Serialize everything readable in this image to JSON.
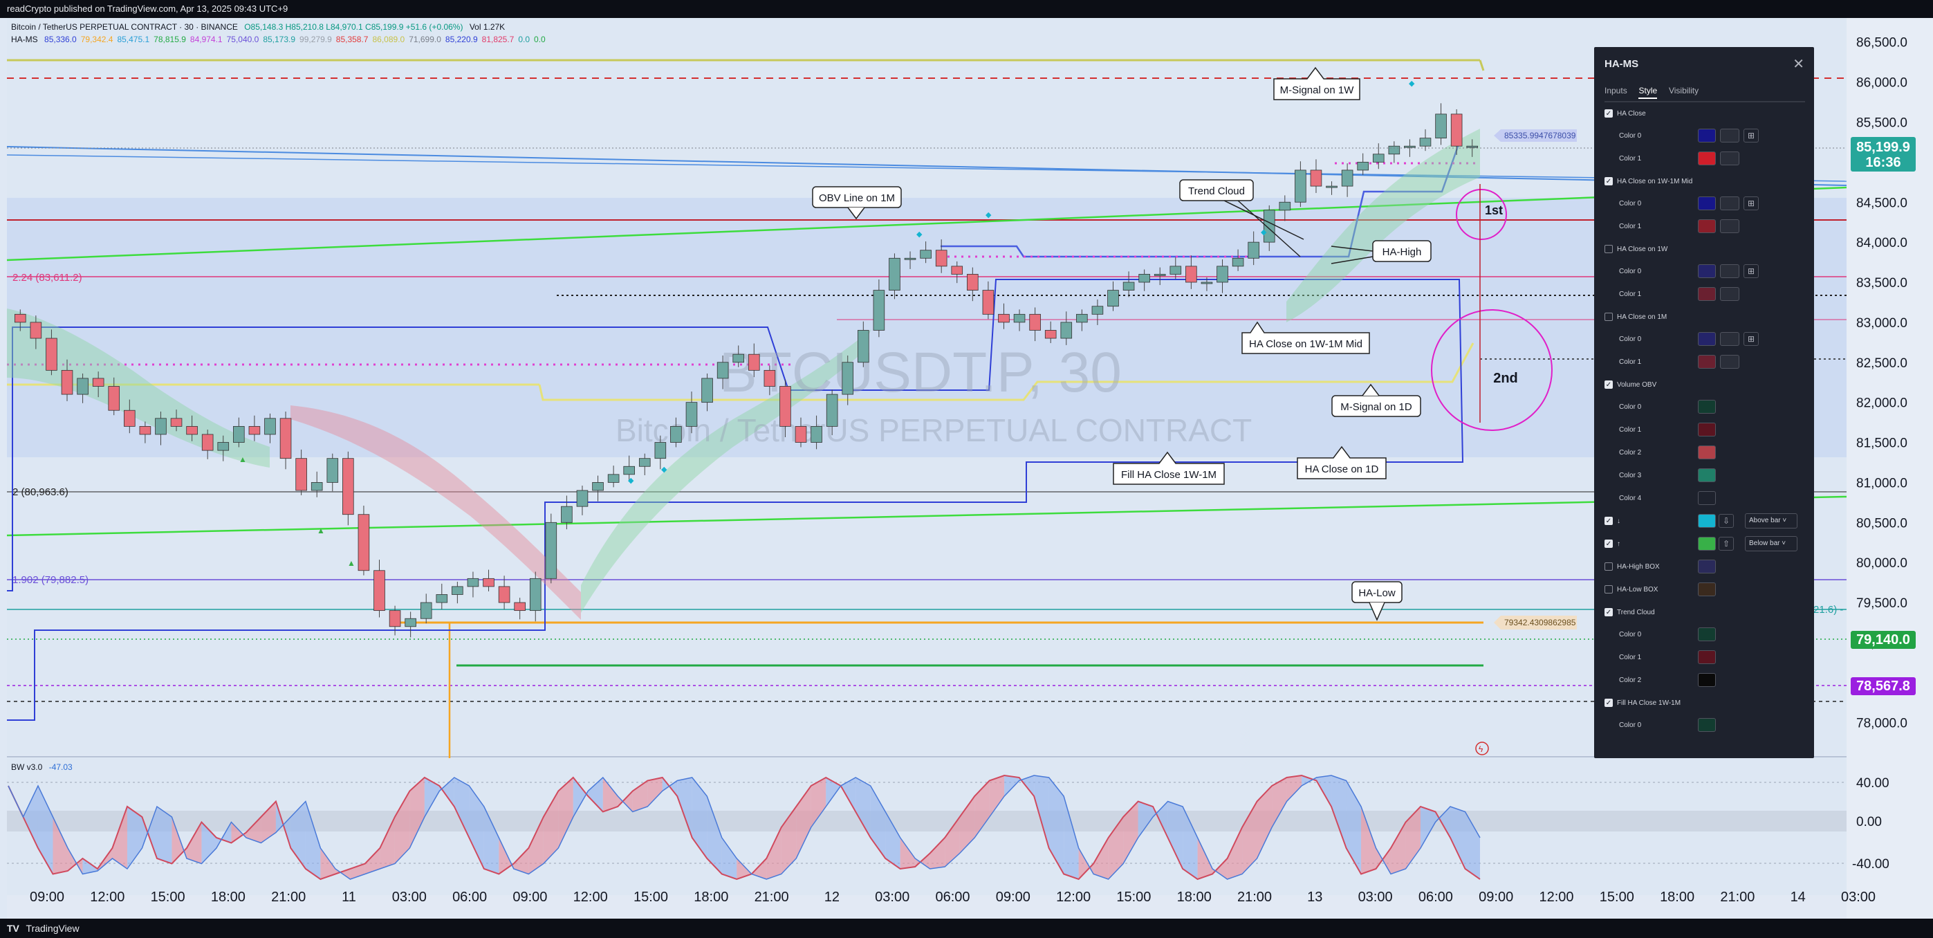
{
  "header": {
    "publisher": "readCrypto published on TradingView.com, Apr 13, 2025 09:43 UTC+9"
  },
  "footer": {
    "brand": "TradingView"
  },
  "legend": {
    "symbol": "Bitcoin / TetherUS PERPETUAL CONTRACT · 30 · BINANCE",
    "ohlc": "O85,148.3  H85,210.8  L84,970.1  C85,199.9  +51.6 (+0.06%)",
    "vol": "Vol 1.27K",
    "ha_ms_name": "HA-MS",
    "ha_ms_values": [
      {
        "text": "85,336.0",
        "color": "#2f3fd6"
      },
      {
        "text": "79,342.4",
        "color": "#f5a623"
      },
      {
        "text": "85,475.1",
        "color": "#2a9fd6"
      },
      {
        "text": "78,815.9",
        "color": "#22aa44"
      },
      {
        "text": "84,974.1",
        "color": "#c440d8"
      },
      {
        "text": "75,040.0",
        "color": "#6a4fd8"
      },
      {
        "text": "85,173.9",
        "color": "#20a0a0"
      },
      {
        "text": "99,279.9",
        "color": "#9aa0aa"
      },
      {
        "text": "85,358.7",
        "color": "#e23b3b"
      },
      {
        "text": "86,089.0",
        "color": "#c8c24a"
      },
      {
        "text": "71,699.0",
        "color": "#7a7f8a"
      },
      {
        "text": "85,220.9",
        "color": "#2f3fd6"
      },
      {
        "text": "81,825.7",
        "color": "#e23b6a"
      },
      {
        "text": "0.0",
        "color": "#20a0a0"
      },
      {
        "text": "0.0",
        "color": "#22aa44"
      }
    ],
    "bw_name": "BW v3.0",
    "bw_value": "-47.03"
  },
  "watermark": {
    "ticker": "BTCUSDT.P, 30",
    "name": "Bitcoin / TetherUS PERPETUAL CONTRACT"
  },
  "annotations": [
    {
      "id": "m-signal-1w",
      "text": "M-Signal on 1W"
    },
    {
      "id": "obv-line-1m",
      "text": "OBV Line on 1M"
    },
    {
      "id": "trend-cloud",
      "text": "Trend Cloud"
    },
    {
      "id": "ha-high",
      "text": "HA-High"
    },
    {
      "id": "ha-close-1w1m-mid",
      "text": "HA Close on 1W-1M Mid"
    },
    {
      "id": "m-signal-1d",
      "text": "M-Signal on 1D"
    },
    {
      "id": "fill-ha-close",
      "text": "Fill HA Close 1W-1M"
    },
    {
      "id": "ha-close-1d",
      "text": "HA Close on 1D"
    },
    {
      "id": "ha-low",
      "text": "HA-Low"
    },
    {
      "id": "first",
      "text": "1st"
    },
    {
      "id": "second",
      "text": "2nd"
    }
  ],
  "fib_labels": [
    {
      "text": "2.24 (83,611.2)",
      "color": "#e0367a"
    },
    {
      "text": "2 (80,963.6)",
      "color": "#222222"
    },
    {
      "text": "1.902 (79,882.5)",
      "color": "#6a4fd8"
    }
  ],
  "price_tags": [
    {
      "text": "85335.9947678039",
      "bg": "#c5cdf3",
      "color": "#3d4fa8"
    },
    {
      "text": "79342.4309862985",
      "bg": "#f2dfc6",
      "color": "#6b5020"
    }
  ],
  "right_axis": {
    "ticks": [
      "86,500.0",
      "86,000.0",
      "85,500.0",
      "85,000.0",
      "84,500.0",
      "84,000.0",
      "83,500.0",
      "83,000.0",
      "82,500.0",
      "82,000.0",
      "81,500.0",
      "81,000.0",
      "80,500.0",
      "80,000.0",
      "79,500.0",
      "79,000.0",
      "78,500.0",
      "78,000.0"
    ],
    "current_price": "85,199.9",
    "countdown": "16:36",
    "tag_79140": "79,140.0",
    "tag_78567": "78,567.8",
    "partial_label": "21.6) -"
  },
  "osc_axis": {
    "ticks": [
      "40.00",
      "0.00",
      "-40.00"
    ]
  },
  "time_axis": [
    "09:00",
    "12:00",
    "15:00",
    "18:00",
    "21:00",
    "11",
    "03:00",
    "06:00",
    "09:00",
    "12:00",
    "15:00",
    "18:00",
    "21:00",
    "12",
    "03:00",
    "06:00",
    "09:00",
    "12:00",
    "15:00",
    "18:00",
    "21:00",
    "13",
    "03:00",
    "06:00",
    "09:00",
    "12:00",
    "15:00",
    "18:00",
    "21:00",
    "14",
    "03:00"
  ],
  "panel": {
    "title": "HA-MS",
    "tabs": [
      "Inputs",
      "Style",
      "Visibility"
    ],
    "active_tab": "Style",
    "rows": [
      {
        "type": "group",
        "label": "HA Close",
        "checked": true
      },
      {
        "type": "color",
        "label": "Color 0",
        "swatch": "#16168a",
        "extras": "line-icon"
      },
      {
        "type": "color",
        "label": "Color 1",
        "swatch": "#d01e2a",
        "extras": "line"
      },
      {
        "type": "group",
        "label": "HA Close on 1W-1M Mid",
        "checked": true
      },
      {
        "type": "color",
        "label": "Color 0",
        "swatch": "#16168a",
        "extras": "line-icon"
      },
      {
        "type": "color",
        "label": "Color 1",
        "swatch": "#8a1e2a",
        "extras": "line"
      },
      {
        "type": "group",
        "label": "HA Close on 1W",
        "checked": false
      },
      {
        "type": "color",
        "label": "Color 0",
        "swatch": "#24246a",
        "extras": "line-icon"
      },
      {
        "type": "color",
        "label": "Color 1",
        "swatch": "#6a2030",
        "extras": "line"
      },
      {
        "type": "group",
        "label": "HA Close on 1M",
        "checked": false
      },
      {
        "type": "color",
        "label": "Color 0",
        "swatch": "#24246a",
        "extras": "line-icon"
      },
      {
        "type": "color",
        "label": "Color 1",
        "swatch": "#6a2030",
        "extras": "line"
      },
      {
        "type": "group",
        "label": "Volume OBV",
        "checked": true
      },
      {
        "type": "color",
        "label": "Color 0",
        "swatch": "#123c30",
        "extras": ""
      },
      {
        "type": "color",
        "label": "Color 1",
        "swatch": "#5a1420",
        "extras": ""
      },
      {
        "type": "color",
        "label": "Color 2",
        "swatch": "#b04048",
        "extras": ""
      },
      {
        "type": "color",
        "label": "Color 3",
        "swatch": "#208068",
        "extras": ""
      },
      {
        "type": "color",
        "label": "Color 4",
        "swatch": "#1e222d",
        "extras": ""
      },
      {
        "type": "arrow",
        "label": "↓",
        "checked": true,
        "swatch": "#14b4d0",
        "select": "Above bar"
      },
      {
        "type": "arrow",
        "label": "↑",
        "checked": true,
        "swatch": "#38b048",
        "select": "Below bar"
      },
      {
        "type": "group",
        "label": "HA-High BOX",
        "checked": false,
        "swatch": "#2a2a5a"
      },
      {
        "type": "group",
        "label": "HA-Low BOX",
        "checked": false,
        "swatch": "#3a2a1e"
      },
      {
        "type": "group",
        "label": "Trend Cloud",
        "checked": true
      },
      {
        "type": "color",
        "label": "Color 0",
        "swatch": "#123c30",
        "extras": ""
      },
      {
        "type": "color",
        "label": "Color 1",
        "swatch": "#5a1420",
        "extras": ""
      },
      {
        "type": "color",
        "label": "Color 2",
        "swatch": "#0a0a0a",
        "extras": ""
      },
      {
        "type": "group",
        "label": "Fill HA Close 1W-1M",
        "checked": true
      },
      {
        "type": "color",
        "label": "Color 0",
        "swatch": "#123c30",
        "extras": ""
      }
    ]
  },
  "chart_data": {
    "type": "candlestick",
    "title": "Bitcoin / TetherUS PERPETUAL CONTRACT · 30 · BINANCE",
    "ylim": [
      77600,
      86800
    ],
    "series": [
      {
        "name": "BTCUSDT.P",
        "values": [
          83000,
          82800,
          82400,
          82100,
          82300,
          82200,
          81900,
          81700,
          81600,
          81800,
          81700,
          81600,
          81400,
          81500,
          81700,
          81600,
          81800,
          81300,
          80900,
          81000,
          81300,
          80600,
          79900,
          79400,
          79200,
          79300,
          79500,
          79600,
          79700,
          79800,
          79700,
          79500,
          79400,
          79800,
          80500,
          80700,
          80900,
          81000,
          81100,
          81200,
          81300,
          81500,
          81700,
          82000,
          82300,
          82500,
          82600,
          82400,
          82200,
          81700,
          81500,
          81700,
          82100,
          82500,
          82900,
          83400,
          83800,
          83800,
          83900,
          83700,
          83600,
          83400,
          83100,
          83000,
          83100,
          82900,
          82800,
          83000,
          83100,
          83200,
          83400,
          83500,
          83600,
          83600,
          83700,
          83500,
          83500,
          83700,
          83800,
          84000,
          84400,
          84500,
          84900,
          84700,
          84700,
          84900,
          85000,
          85100,
          85200,
          85200,
          85300,
          85600,
          85200,
          85200
        ]
      }
    ],
    "oscillator": {
      "name": "BW v3.0",
      "ylim": [
        -60,
        60
      ],
      "values": [
        40,
        10,
        -20,
        -45,
        -42,
        -30,
        -40,
        -20,
        20,
        10,
        -30,
        -35,
        -20,
        5,
        -10,
        -15,
        -5,
        10,
        25,
        -20,
        -40,
        -50,
        -45,
        -40,
        -35,
        -20,
        10,
        35,
        48,
        40,
        20,
        -10,
        -40,
        -45,
        -35,
        -20,
        10,
        35,
        48,
        30,
        15,
        20,
        35,
        45,
        48,
        30,
        -10,
        -30,
        -45,
        -50,
        -45,
        -30,
        0,
        20,
        40,
        48,
        40,
        15,
        -10,
        -30,
        -40,
        -38,
        -25,
        -10,
        10,
        30,
        45,
        50,
        48,
        30,
        -20,
        -45,
        -50,
        -35,
        -10,
        10,
        25,
        20,
        -10,
        -40,
        -50,
        -45,
        -30,
        0,
        25,
        40,
        48,
        50,
        45,
        20,
        -20,
        -45,
        -40,
        -20,
        5,
        20,
        15,
        -10,
        -40,
        -50
      ]
    }
  }
}
